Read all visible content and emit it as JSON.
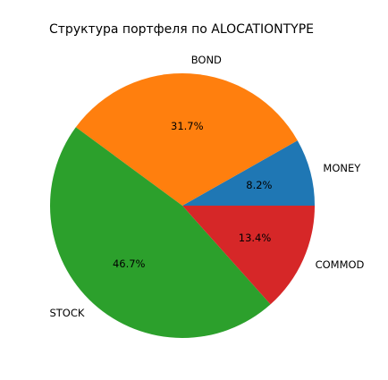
{
  "chart_data": {
    "type": "pie",
    "title": "Структура портфеля по ALOCATIONTYPE",
    "slices": [
      {
        "label": "MONEY",
        "value": 8.2,
        "pct_label": "8.2%",
        "color": "#1f77b4"
      },
      {
        "label": "BOND",
        "value": 31.7,
        "pct_label": "31.7%",
        "color": "#ff7f0e"
      },
      {
        "label": "STOCK",
        "value": 46.7,
        "pct_label": "46.7%",
        "color": "#2ca02c"
      },
      {
        "label": "COMMOD",
        "value": 13.4,
        "pct_label": "13.4%",
        "color": "#d62728"
      }
    ],
    "start_angle_deg": 0,
    "direction": "counterclockwise",
    "legend": "none"
  }
}
